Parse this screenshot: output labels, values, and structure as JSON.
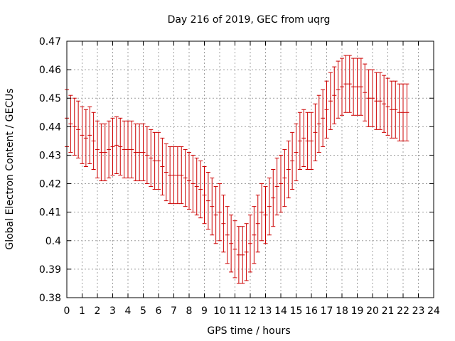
{
  "chart_data": {
    "type": "line",
    "title": "Day 216 of 2019, GEC from uqrg",
    "xlabel": "GPS time / hours",
    "ylabel": "Global Electron Content / GECUs",
    "xlim": [
      0,
      24
    ],
    "ylim": [
      0.38,
      0.47
    ],
    "grid": true,
    "x_ticks": [
      0,
      1,
      2,
      3,
      4,
      5,
      6,
      7,
      8,
      9,
      10,
      11,
      12,
      13,
      14,
      15,
      16,
      17,
      18,
      19,
      20,
      21,
      22,
      23,
      24
    ],
    "y_ticks": [
      0.38,
      0.39,
      0.4,
      0.41,
      0.42,
      0.43,
      0.44,
      0.45,
      0.46,
      0.47
    ],
    "y_tick_labels": [
      "0.38",
      "0.39",
      "0.4",
      "0.41",
      "0.42",
      "0.43",
      "0.44",
      "0.45",
      "0.46",
      "0.47"
    ],
    "series": [
      {
        "name": "GEC",
        "color": "#cc0000",
        "error": 0.01,
        "points": [
          {
            "x": 0.0,
            "y": 0.443
          },
          {
            "x": 0.25,
            "y": 0.441
          },
          {
            "x": 0.5,
            "y": 0.44
          },
          {
            "x": 0.75,
            "y": 0.439
          },
          {
            "x": 1.0,
            "y": 0.437
          },
          {
            "x": 1.25,
            "y": 0.436
          },
          {
            "x": 1.5,
            "y": 0.437
          },
          {
            "x": 1.75,
            "y": 0.435
          },
          {
            "x": 2.0,
            "y": 0.432
          },
          {
            "x": 2.25,
            "y": 0.431
          },
          {
            "x": 2.5,
            "y": 0.431
          },
          {
            "x": 2.75,
            "y": 0.432
          },
          {
            "x": 3.0,
            "y": 0.433
          },
          {
            "x": 3.25,
            "y": 0.4335
          },
          {
            "x": 3.5,
            "y": 0.433
          },
          {
            "x": 3.75,
            "y": 0.432
          },
          {
            "x": 4.0,
            "y": 0.432
          },
          {
            "x": 4.25,
            "y": 0.432
          },
          {
            "x": 4.5,
            "y": 0.431
          },
          {
            "x": 4.75,
            "y": 0.431
          },
          {
            "x": 5.0,
            "y": 0.431
          },
          {
            "x": 5.25,
            "y": 0.43
          },
          {
            "x": 5.5,
            "y": 0.429
          },
          {
            "x": 5.75,
            "y": 0.428
          },
          {
            "x": 6.0,
            "y": 0.428
          },
          {
            "x": 6.25,
            "y": 0.426
          },
          {
            "x": 6.5,
            "y": 0.424
          },
          {
            "x": 6.75,
            "y": 0.423
          },
          {
            "x": 7.0,
            "y": 0.423
          },
          {
            "x": 7.25,
            "y": 0.423
          },
          {
            "x": 7.5,
            "y": 0.423
          },
          {
            "x": 7.75,
            "y": 0.422
          },
          {
            "x": 8.0,
            "y": 0.421
          },
          {
            "x": 8.25,
            "y": 0.42
          },
          {
            "x": 8.5,
            "y": 0.419
          },
          {
            "x": 8.75,
            "y": 0.418
          },
          {
            "x": 9.0,
            "y": 0.416
          },
          {
            "x": 9.25,
            "y": 0.414
          },
          {
            "x": 9.5,
            "y": 0.412
          },
          {
            "x": 9.75,
            "y": 0.409
          },
          {
            "x": 10.0,
            "y": 0.41
          },
          {
            "x": 10.25,
            "y": 0.406
          },
          {
            "x": 10.5,
            "y": 0.402
          },
          {
            "x": 10.75,
            "y": 0.399
          },
          {
            "x": 11.0,
            "y": 0.397
          },
          {
            "x": 11.25,
            "y": 0.395
          },
          {
            "x": 11.5,
            "y": 0.395
          },
          {
            "x": 11.75,
            "y": 0.396
          },
          {
            "x": 12.0,
            "y": 0.399
          },
          {
            "x": 12.25,
            "y": 0.402
          },
          {
            "x": 12.5,
            "y": 0.406
          },
          {
            "x": 12.75,
            "y": 0.41
          },
          {
            "x": 13.0,
            "y": 0.409
          },
          {
            "x": 13.25,
            "y": 0.412
          },
          {
            "x": 13.5,
            "y": 0.415
          },
          {
            "x": 13.75,
            "y": 0.419
          },
          {
            "x": 14.0,
            "y": 0.42
          },
          {
            "x": 14.25,
            "y": 0.422
          },
          {
            "x": 14.5,
            "y": 0.425
          },
          {
            "x": 14.75,
            "y": 0.428
          },
          {
            "x": 15.0,
            "y": 0.431
          },
          {
            "x": 15.25,
            "y": 0.435
          },
          {
            "x": 15.5,
            "y": 0.436
          },
          {
            "x": 15.75,
            "y": 0.435
          },
          {
            "x": 16.0,
            "y": 0.435
          },
          {
            "x": 16.25,
            "y": 0.438
          },
          {
            "x": 16.5,
            "y": 0.441
          },
          {
            "x": 16.75,
            "y": 0.443
          },
          {
            "x": 17.0,
            "y": 0.446
          },
          {
            "x": 17.25,
            "y": 0.449
          },
          {
            "x": 17.5,
            "y": 0.451
          },
          {
            "x": 17.75,
            "y": 0.453
          },
          {
            "x": 18.0,
            "y": 0.454
          },
          {
            "x": 18.25,
            "y": 0.455
          },
          {
            "x": 18.5,
            "y": 0.455
          },
          {
            "x": 18.75,
            "y": 0.454
          },
          {
            "x": 19.0,
            "y": 0.454
          },
          {
            "x": 19.25,
            "y": 0.454
          },
          {
            "x": 19.5,
            "y": 0.452
          },
          {
            "x": 19.75,
            "y": 0.45
          },
          {
            "x": 20.0,
            "y": 0.45
          },
          {
            "x": 20.25,
            "y": 0.449
          },
          {
            "x": 20.5,
            "y": 0.449
          },
          {
            "x": 20.75,
            "y": 0.448
          },
          {
            "x": 21.0,
            "y": 0.447
          },
          {
            "x": 21.25,
            "y": 0.446
          },
          {
            "x": 21.5,
            "y": 0.446
          },
          {
            "x": 21.75,
            "y": 0.445
          },
          {
            "x": 22.0,
            "y": 0.445
          },
          {
            "x": 22.25,
            "y": 0.445
          }
        ]
      }
    ]
  }
}
